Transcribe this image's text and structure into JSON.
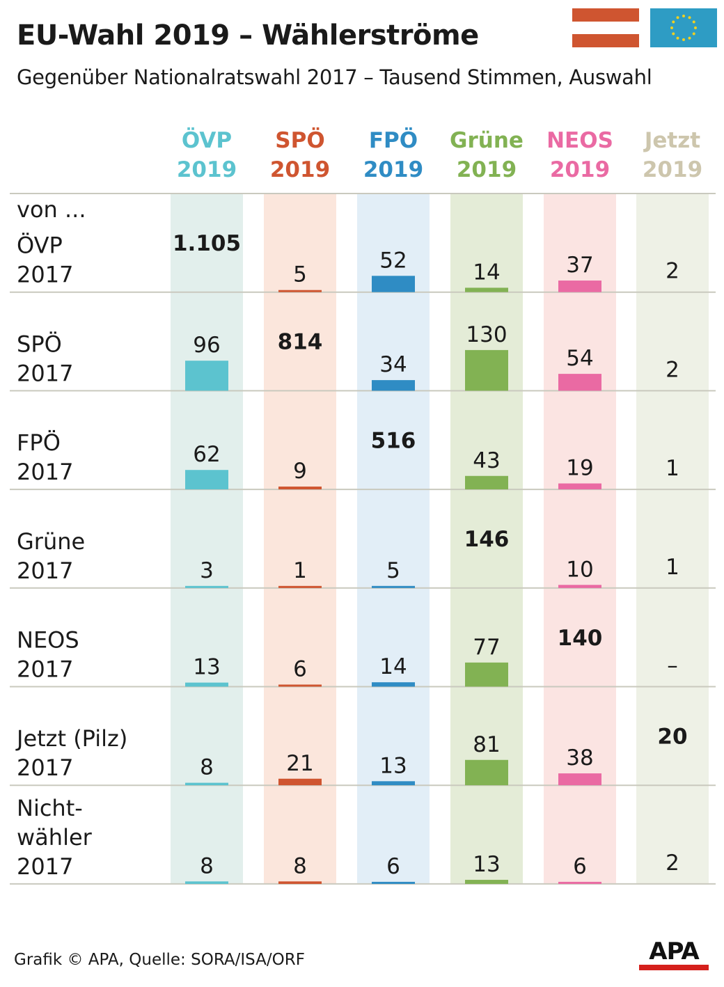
{
  "title": "EU-Wahl 2019 – Wählerströme",
  "subtitle": "Gegenüber Nationalratswahl 2017 – Tausend Stimmen, Auswahl",
  "footer": "Grafik © APA, Quelle: SORA/ISA/ORF",
  "logo": "APA",
  "flags": [
    "austria-flag",
    "eu-flag"
  ],
  "colors": {
    "austria_red": "#cf5530",
    "eu_blue": "#2e9cc4",
    "eu_star": "#f0d020",
    "apa_red": "#d5201c"
  },
  "chart_data": {
    "type": "table",
    "row_header_prefix": "von ...",
    "columns": [
      {
        "label": [
          "ÖVP",
          "2019"
        ],
        "color": "#5cc3cf",
        "bg": "#e2efec"
      },
      {
        "label": [
          "SPÖ",
          "2019"
        ],
        "color": "#cf5530",
        "bg": "#fbe6dc"
      },
      {
        "label": [
          "FPÖ",
          "2019"
        ],
        "color": "#2f8cc4",
        "bg": "#e2eef7"
      },
      {
        "label": [
          "Grüne",
          "2019"
        ],
        "color": "#82b253",
        "bg": "#e4ecd7"
      },
      {
        "label": [
          "NEOS",
          "2019"
        ],
        "color": "#ea6aa3",
        "bg": "#fbe4e2"
      },
      {
        "label": [
          "Jetzt",
          "2019"
        ],
        "color": "#cdc6ad",
        "bg": "#eef1e6"
      }
    ],
    "rows": [
      {
        "label": [
          "ÖVP",
          "2017"
        ],
        "values": [
          "1.105",
          "5",
          "52",
          "14",
          "37",
          "2"
        ],
        "diagonal": 0
      },
      {
        "label": [
          "SPÖ",
          "2017"
        ],
        "values": [
          "96",
          "814",
          "34",
          "130",
          "54",
          "2"
        ],
        "diagonal": 1
      },
      {
        "label": [
          "FPÖ",
          "2017"
        ],
        "values": [
          "62",
          "9",
          "516",
          "43",
          "19",
          "1"
        ],
        "diagonal": 2
      },
      {
        "label": [
          "Grüne",
          "2017"
        ],
        "values": [
          "3",
          "1",
          "5",
          "146",
          "10",
          "1"
        ],
        "diagonal": 3
      },
      {
        "label": [
          "NEOS",
          "2017"
        ],
        "values": [
          "13",
          "6",
          "14",
          "77",
          "140",
          "–"
        ],
        "diagonal": 4
      },
      {
        "label": [
          "Jetzt (Pilz)",
          "2017"
        ],
        "values": [
          "8",
          "21",
          "13",
          "81",
          "38",
          "20"
        ],
        "diagonal": 5
      },
      {
        "label": [
          "Nicht-",
          "wähler",
          "2017"
        ],
        "values": [
          "8",
          "8",
          "6",
          "13",
          "6",
          "2"
        ],
        "diagonal": -1
      }
    ]
  }
}
